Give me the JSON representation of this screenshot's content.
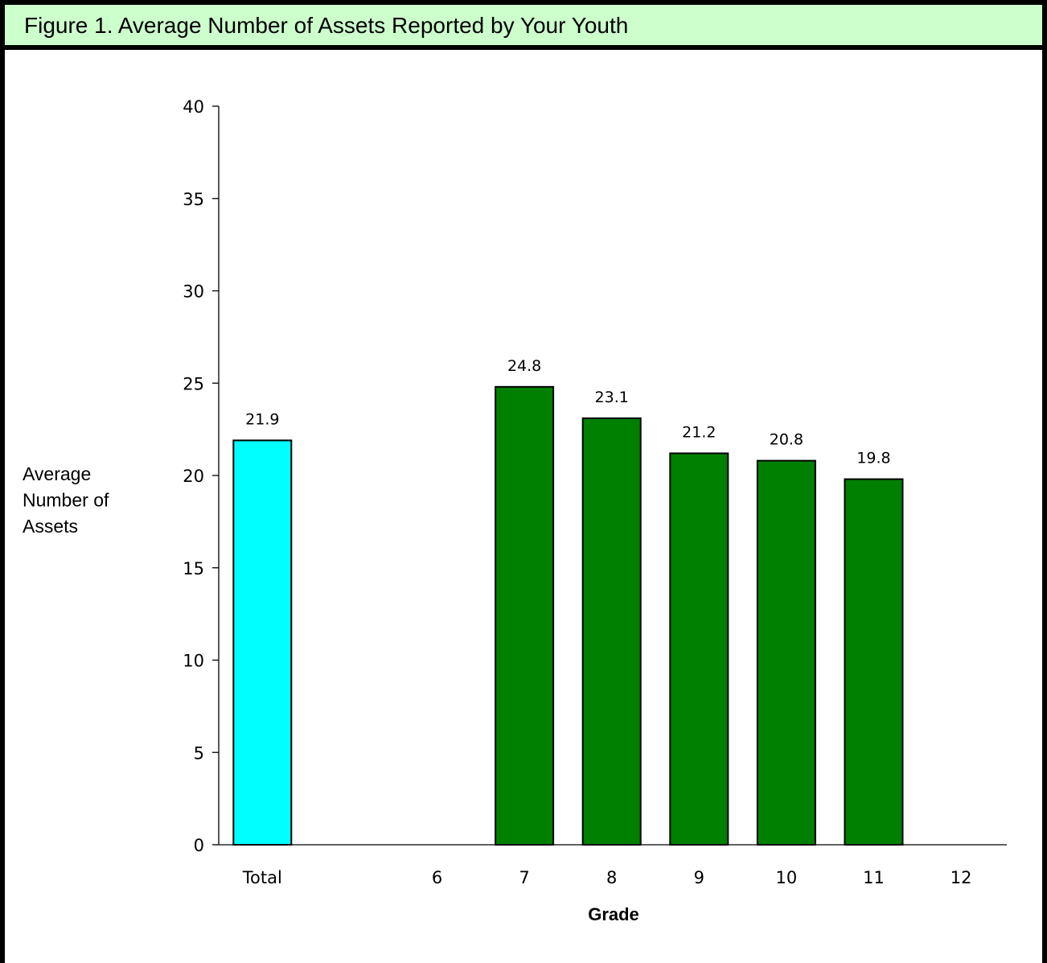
{
  "title": "Figure 1.  Average Number of Assets Reported by Your Youth",
  "chart_data": {
    "type": "bar",
    "xlabel": "Grade",
    "ylabel_lines": [
      "Average",
      "Number of",
      "Assets"
    ],
    "ylim": [
      0,
      40
    ],
    "yticks": [
      0,
      5,
      10,
      15,
      20,
      25,
      30,
      35,
      40
    ],
    "categories": [
      "Total",
      "",
      "6",
      "7",
      "8",
      "9",
      "10",
      "11",
      "12"
    ],
    "values": [
      21.9,
      null,
      null,
      24.8,
      23.1,
      21.2,
      20.8,
      19.8,
      null
    ],
    "value_labels": [
      "21.9",
      "",
      "",
      "24.8",
      "23.1",
      "21.2",
      "20.8",
      "19.8",
      ""
    ],
    "bar_colors": [
      "#00ffff",
      null,
      null,
      "#008000",
      "#008000",
      "#008000",
      "#008000",
      "#008000",
      null
    ],
    "grid": false,
    "legend": "none"
  }
}
